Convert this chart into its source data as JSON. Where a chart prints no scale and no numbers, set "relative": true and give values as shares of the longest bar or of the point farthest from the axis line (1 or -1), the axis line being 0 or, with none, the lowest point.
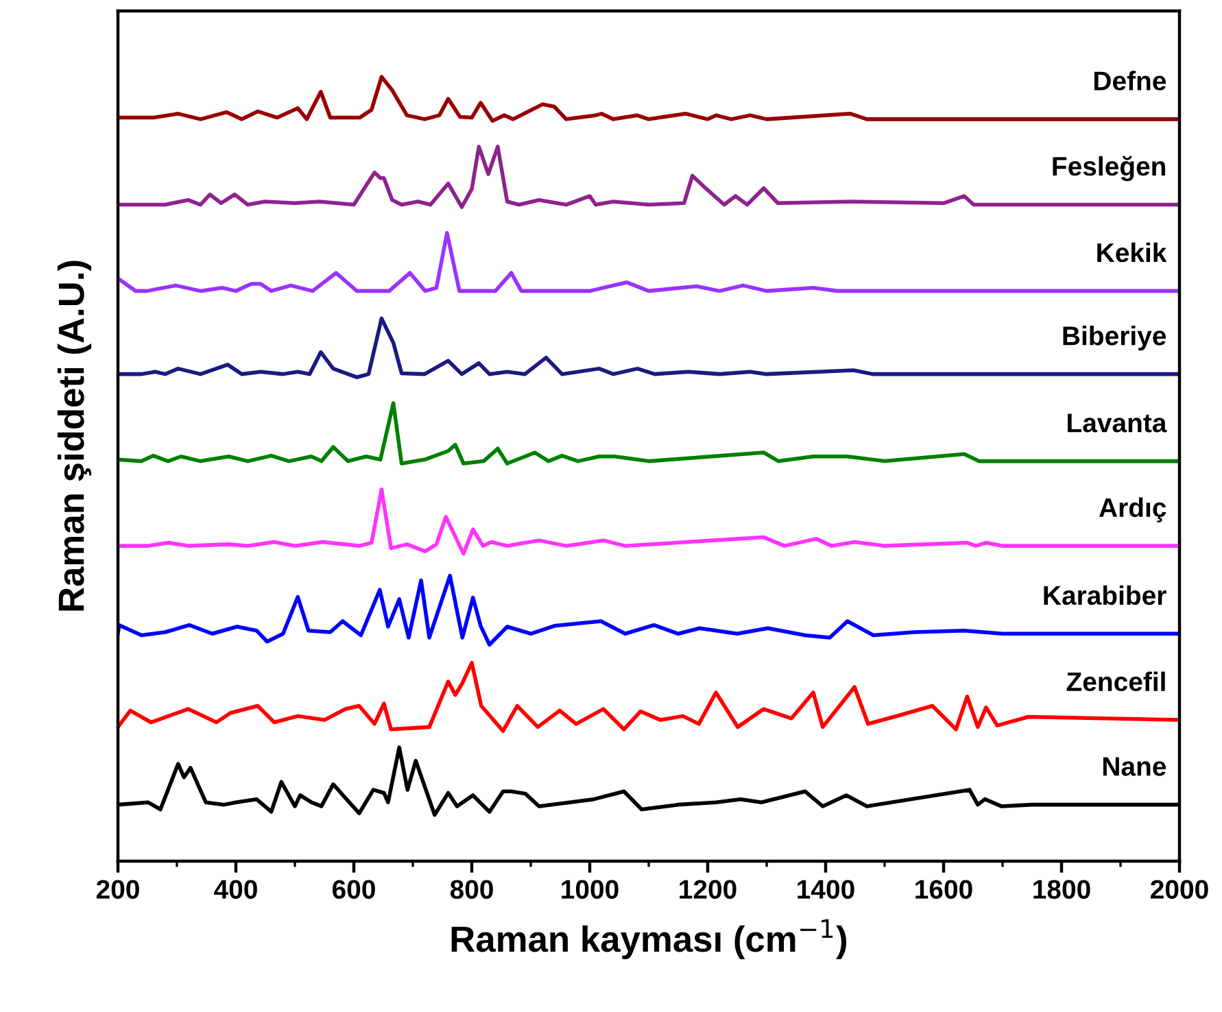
{
  "chart_data": {
    "type": "line",
    "relative": true,
    "xlabel": "Raman kayması (cm$^{−1}$)",
    "ylabel": "Raman şiddeti (A.U.)",
    "xlim": [
      200,
      2000
    ],
    "xticks": [
      200,
      400,
      600,
      800,
      1000,
      1200,
      1400,
      1600,
      1800,
      2000
    ],
    "grid": false,
    "legend": false,
    "marker": "none",
    "line_style": "solid",
    "tick_labels": "x",
    "series": [
      {
        "name": "Defne",
        "color": "#990000",
        "x": [
          200,
          260,
          302,
          340,
          384,
          410,
          437,
          470,
          505,
          520,
          544,
          560,
          610,
          630,
          647,
          665,
          690,
          720,
          745,
          760,
          780,
          800,
          815,
          835,
          855,
          870,
          920,
          940,
          960,
          1010,
          1020,
          1040,
          1080,
          1100,
          1163,
          1200,
          1214,
          1240,
          1272,
          1300,
          1442,
          1470,
          2000
        ],
        "values": [
          0.948,
          0.948,
          0.953,
          0.946,
          0.955,
          0.946,
          0.956,
          0.948,
          0.96,
          0.946,
          0.981,
          0.948,
          0.948,
          0.958,
          1.0,
          0.983,
          0.951,
          0.946,
          0.951,
          0.972,
          0.949,
          0.948,
          0.967,
          0.944,
          0.951,
          0.946,
          0.965,
          0.962,
          0.946,
          0.951,
          0.953,
          0.946,
          0.951,
          0.946,
          0.953,
          0.946,
          0.951,
          0.946,
          0.951,
          0.946,
          0.953,
          0.946,
          0.946
        ]
      },
      {
        "name": "Fesleğen",
        "color": "#8e238e",
        "x": [
          200,
          280,
          319,
          340,
          356,
          375,
          398,
          420,
          449,
          500,
          542,
          600,
          635,
          645,
          651,
          665,
          681,
          709,
          730,
          760,
          783,
          800,
          812,
          828,
          844,
          860,
          880,
          914,
          960,
          1000,
          1010,
          1040,
          1100,
          1160,
          1174,
          1198,
          1228,
          1247,
          1267,
          1295,
          1319,
          1442,
          1600,
          1635,
          1651,
          2000
        ],
        "values": [
          0.837,
          0.837,
          0.843,
          0.837,
          0.85,
          0.839,
          0.85,
          0.837,
          0.841,
          0.839,
          0.841,
          0.837,
          0.878,
          0.871,
          0.871,
          0.843,
          0.837,
          0.841,
          0.837,
          0.864,
          0.834,
          0.857,
          0.911,
          0.876,
          0.911,
          0.841,
          0.837,
          0.843,
          0.837,
          0.848,
          0.837,
          0.841,
          0.837,
          0.839,
          0.874,
          0.857,
          0.837,
          0.848,
          0.837,
          0.858,
          0.839,
          0.841,
          0.839,
          0.848,
          0.837,
          0.837
        ]
      },
      {
        "name": "Kekik",
        "color": "#9933ff",
        "x": [
          200,
          230,
          249,
          298,
          340,
          377,
          400,
          426,
          442,
          460,
          493,
          530,
          570,
          605,
          660,
          695,
          721,
          740,
          758,
          779,
          840,
          867,
          884,
          1000,
          1063,
          1100,
          1181,
          1220,
          1260,
          1300,
          1379,
          1420,
          2000
        ],
        "values": [
          0.743,
          0.727,
          0.727,
          0.734,
          0.727,
          0.731,
          0.727,
          0.736,
          0.736,
          0.727,
          0.734,
          0.727,
          0.75,
          0.727,
          0.727,
          0.75,
          0.727,
          0.731,
          0.801,
          0.727,
          0.727,
          0.75,
          0.727,
          0.727,
          0.738,
          0.727,
          0.733,
          0.727,
          0.734,
          0.727,
          0.731,
          0.727,
          0.727
        ]
      },
      {
        "name": "Biberiye",
        "color": "#1a1a80",
        "x": [
          200,
          240,
          263,
          280,
          302,
          340,
          386,
          410,
          442,
          480,
          505,
          525,
          544,
          565,
          605,
          625,
          647,
          667,
          681,
          720,
          760,
          783,
          812,
          830,
          860,
          890,
          926,
          953,
          1016,
          1040,
          1081,
          1110,
          1167,
          1220,
          1272,
          1300,
          1447,
          1480,
          2000
        ],
        "values": [
          0.621,
          0.621,
          0.624,
          0.621,
          0.628,
          0.621,
          0.633,
          0.621,
          0.624,
          0.621,
          0.624,
          0.621,
          0.649,
          0.628,
          0.617,
          0.621,
          0.692,
          0.661,
          0.622,
          0.621,
          0.638,
          0.621,
          0.635,
          0.621,
          0.624,
          0.621,
          0.642,
          0.621,
          0.628,
          0.621,
          0.628,
          0.621,
          0.624,
          0.621,
          0.624,
          0.621,
          0.626,
          0.621,
          0.621
        ]
      },
      {
        "name": "Lavanta",
        "color": "#008000",
        "x": [
          200,
          240,
          260,
          285,
          307,
          340,
          388,
          420,
          460,
          490,
          528,
          545,
          565,
          590,
          621,
          645,
          667,
          681,
          720,
          760,
          772,
          786,
          820,
          844,
          860,
          907,
          930,
          953,
          980,
          1016,
          1042,
          1100,
          1295,
          1320,
          1379,
          1437,
          1500,
          1635,
          1660,
          2000
        ],
        "values": [
          0.512,
          0.51,
          0.517,
          0.51,
          0.516,
          0.51,
          0.516,
          0.51,
          0.517,
          0.51,
          0.516,
          0.51,
          0.528,
          0.51,
          0.516,
          0.512,
          0.584,
          0.507,
          0.512,
          0.523,
          0.531,
          0.507,
          0.51,
          0.526,
          0.507,
          0.521,
          0.51,
          0.517,
          0.51,
          0.516,
          0.516,
          0.51,
          0.521,
          0.51,
          0.516,
          0.516,
          0.51,
          0.519,
          0.51,
          0.51
        ]
      },
      {
        "name": "Ardıç",
        "color": "#ff33ff",
        "x": [
          200,
          250,
          286,
          320,
          388,
          420,
          465,
          500,
          547,
          610,
          630,
          647,
          663,
          690,
          721,
          740,
          756,
          786,
          802,
          819,
          833,
          860,
          914,
          960,
          1023,
          1060,
          1295,
          1330,
          1384,
          1410,
          1449,
          1500,
          1640,
          1655,
          1672,
          1700,
          2000
        ],
        "values": [
          0.402,
          0.402,
          0.406,
          0.402,
          0.404,
          0.402,
          0.407,
          0.402,
          0.407,
          0.402,
          0.406,
          0.474,
          0.399,
          0.404,
          0.395,
          0.404,
          0.439,
          0.392,
          0.423,
          0.402,
          0.407,
          0.402,
          0.409,
          0.402,
          0.409,
          0.402,
          0.413,
          0.402,
          0.411,
          0.402,
          0.407,
          0.402,
          0.406,
          0.402,
          0.406,
          0.402,
          0.402
        ]
      },
      {
        "name": "Karabiber",
        "color": "#0000ff",
        "x": [
          200,
          202,
          240,
          280,
          321,
          360,
          402,
          435,
          453,
          480,
          505,
          523,
          560,
          581,
          612,
          644,
          658,
          677,
          693,
          714,
          728,
          763,
          784,
          802,
          815,
          830,
          860,
          900,
          940,
          1019,
          1060,
          1109,
          1150,
          1186,
          1250,
          1302,
          1365,
          1407,
          1437,
          1481,
          1550,
          1635,
          1700,
          2000
        ],
        "values": [
          0.29,
          0.301,
          0.288,
          0.292,
          0.301,
          0.29,
          0.299,
          0.294,
          0.28,
          0.29,
          0.337,
          0.294,
          0.292,
          0.306,
          0.288,
          0.346,
          0.299,
          0.334,
          0.285,
          0.358,
          0.285,
          0.364,
          0.285,
          0.336,
          0.3,
          0.276,
          0.299,
          0.29,
          0.3,
          0.306,
          0.29,
          0.301,
          0.29,
          0.297,
          0.29,
          0.297,
          0.288,
          0.285,
          0.306,
          0.288,
          0.292,
          0.294,
          0.29,
          0.29
        ]
      },
      {
        "name": "Zencefil",
        "color": "#ff0000",
        "x": [
          200,
          221,
          256,
          319,
          367,
          391,
          437,
          465,
          505,
          550,
          586,
          609,
          635,
          651,
          663,
          728,
          760,
          772,
          784,
          800,
          816,
          853,
          877,
          912,
          949,
          977,
          1023,
          1058,
          1086,
          1120,
          1158,
          1185,
          1214,
          1251,
          1295,
          1342,
          1379,
          1395,
          1449,
          1472,
          1516,
          1581,
          1621,
          1640,
          1658,
          1672,
          1691,
          1744,
          2000
        ],
        "values": [
          0.171,
          0.192,
          0.177,
          0.194,
          0.177,
          0.189,
          0.198,
          0.177,
          0.185,
          0.18,
          0.194,
          0.198,
          0.175,
          0.201,
          0.168,
          0.171,
          0.229,
          0.212,
          0.227,
          0.253,
          0.198,
          0.166,
          0.198,
          0.171,
          0.192,
          0.175,
          0.194,
          0.168,
          0.191,
          0.18,
          0.185,
          0.175,
          0.215,
          0.171,
          0.194,
          0.182,
          0.215,
          0.171,
          0.222,
          0.175,
          0.184,
          0.198,
          0.168,
          0.21,
          0.171,
          0.196,
          0.173,
          0.184,
          0.18
        ]
      },
      {
        "name": "Nane",
        "color": "#000000",
        "x": [
          200,
          251,
          272,
          302,
          312,
          323,
          349,
          380,
          400,
          435,
          460,
          477,
          500,
          509,
          528,
          545,
          565,
          609,
          633,
          651,
          658,
          677,
          691,
          705,
          737,
          760,
          775,
          802,
          830,
          853,
          867,
          891,
          914,
          1007,
          1058,
          1088,
          1150,
          1214,
          1256,
          1291,
          1365,
          1395,
          1435,
          1470,
          1644,
          1658,
          1670,
          1698,
          1750,
          2000
        ],
        "values": [
          0.072,
          0.075,
          0.066,
          0.124,
          0.107,
          0.119,
          0.075,
          0.072,
          0.075,
          0.079,
          0.063,
          0.101,
          0.07,
          0.084,
          0.075,
          0.07,
          0.098,
          0.061,
          0.091,
          0.087,
          0.075,
          0.145,
          0.091,
          0.128,
          0.059,
          0.087,
          0.07,
          0.084,
          0.063,
          0.089,
          0.089,
          0.086,
          0.07,
          0.079,
          0.089,
          0.066,
          0.072,
          0.075,
          0.079,
          0.075,
          0.089,
          0.07,
          0.084,
          0.07,
          0.091,
          0.072,
          0.079,
          0.07,
          0.072,
          0.072
        ]
      }
    ]
  }
}
